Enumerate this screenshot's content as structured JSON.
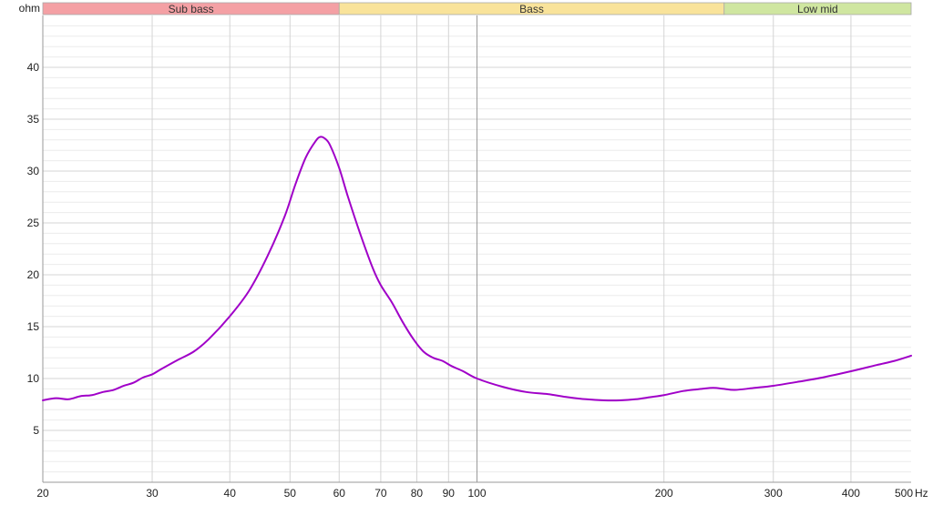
{
  "chart_data": {
    "type": "line",
    "y_unit_label": "ohm",
    "x_unit_label": "Hz",
    "x_scale": "log",
    "xlim": [
      20,
      500
    ],
    "ylim": [
      0,
      45
    ],
    "grid": true,
    "x_ticks": [
      {
        "value": 20,
        "label": "20"
      },
      {
        "value": 30,
        "label": "30"
      },
      {
        "value": 40,
        "label": "40"
      },
      {
        "value": 50,
        "label": "50"
      },
      {
        "value": 60,
        "label": "60"
      },
      {
        "value": 70,
        "label": "70"
      },
      {
        "value": 80,
        "label": "80"
      },
      {
        "value": 90,
        "label": "90"
      },
      {
        "value": 100,
        "label": "100"
      },
      {
        "value": 200,
        "label": "200"
      },
      {
        "value": 300,
        "label": "300"
      },
      {
        "value": 400,
        "label": "400"
      },
      {
        "value": 500,
        "label": "500"
      }
    ],
    "y_ticks": [
      5,
      10,
      15,
      20,
      25,
      30,
      35,
      40
    ],
    "bands": [
      {
        "label": "Sub bass",
        "from": 20,
        "to": 60,
        "color": "#f4a0a4"
      },
      {
        "label": "Bass",
        "from": 60,
        "to": 250,
        "color": "#f9e39a"
      },
      {
        "label": "Low mid",
        "from": 250,
        "to": 500,
        "color": "#cfe6a0"
      }
    ],
    "series": [
      {
        "color": "#a000c8",
        "points": [
          [
            20,
            7.9
          ],
          [
            21,
            8.1
          ],
          [
            22,
            8.0
          ],
          [
            23,
            8.3
          ],
          [
            24,
            8.4
          ],
          [
            25,
            8.7
          ],
          [
            26,
            8.9
          ],
          [
            27,
            9.3
          ],
          [
            28,
            9.6
          ],
          [
            29,
            10.1
          ],
          [
            30,
            10.4
          ],
          [
            31,
            10.9
          ],
          [
            33,
            11.8
          ],
          [
            35,
            12.6
          ],
          [
            37,
            13.8
          ],
          [
            40,
            16.0
          ],
          [
            43,
            18.5
          ],
          [
            46,
            21.8
          ],
          [
            49,
            25.6
          ],
          [
            51,
            28.7
          ],
          [
            53,
            31.3
          ],
          [
            55,
            32.9
          ],
          [
            56,
            33.3
          ],
          [
            57,
            33.1
          ],
          [
            58,
            32.5
          ],
          [
            60,
            30.3
          ],
          [
            62,
            27.5
          ],
          [
            65,
            23.8
          ],
          [
            68,
            20.6
          ],
          [
            70,
            19.0
          ],
          [
            73,
            17.3
          ],
          [
            76,
            15.4
          ],
          [
            79,
            13.8
          ],
          [
            82,
            12.6
          ],
          [
            85,
            12.0
          ],
          [
            88,
            11.7
          ],
          [
            91,
            11.2
          ],
          [
            95,
            10.7
          ],
          [
            100,
            10.0
          ],
          [
            110,
            9.2
          ],
          [
            120,
            8.7
          ],
          [
            130,
            8.5
          ],
          [
            140,
            8.2
          ],
          [
            150,
            8.0
          ],
          [
            160,
            7.9
          ],
          [
            170,
            7.9
          ],
          [
            180,
            8.0
          ],
          [
            190,
            8.2
          ],
          [
            200,
            8.4
          ],
          [
            215,
            8.8
          ],
          [
            230,
            9.0
          ],
          [
            240,
            9.1
          ],
          [
            250,
            9.0
          ],
          [
            260,
            8.9
          ],
          [
            280,
            9.1
          ],
          [
            300,
            9.3
          ],
          [
            330,
            9.7
          ],
          [
            360,
            10.1
          ],
          [
            400,
            10.7
          ],
          [
            440,
            11.3
          ],
          [
            470,
            11.7
          ],
          [
            500,
            12.2
          ]
        ]
      }
    ]
  }
}
